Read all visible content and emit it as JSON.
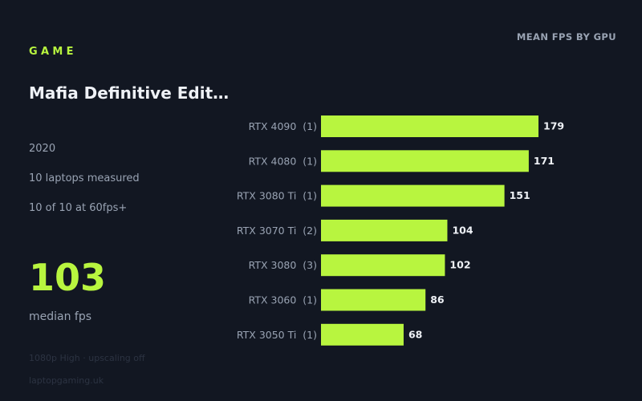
{
  "header": {
    "eyebrow": "GAME",
    "chart_heading": "MEAN FPS BY GPU"
  },
  "game": {
    "title": "Mafia Definitive Edit…",
    "year": "2020",
    "laptops_measured": "10 laptops measured",
    "at_60fps": "10 of 10 at 60fps+",
    "median_value": "103",
    "median_label": "median fps",
    "settings": "1080p High · upscaling off",
    "source": "laptopgaming.uk"
  },
  "colors": {
    "accent": "#b8f53f",
    "background": "#121722",
    "muted_text": "#99a3b3",
    "value_text": "#eef1f6"
  },
  "chart_data": {
    "type": "bar",
    "orientation": "horizontal",
    "title": "MEAN FPS BY GPU",
    "categories": [
      "RTX 4090  (1)",
      "RTX 4080  (1)",
      "RTX 3080 Ti  (1)",
      "RTX 3070 Ti  (2)",
      "RTX 3080  (3)",
      "RTX 3060  (1)",
      "RTX 3050 Ti  (1)"
    ],
    "values": [
      179,
      171,
      151,
      104,
      102,
      86,
      68
    ],
    "xlim": [
      0,
      220
    ],
    "grid": false,
    "data_labels": true
  }
}
